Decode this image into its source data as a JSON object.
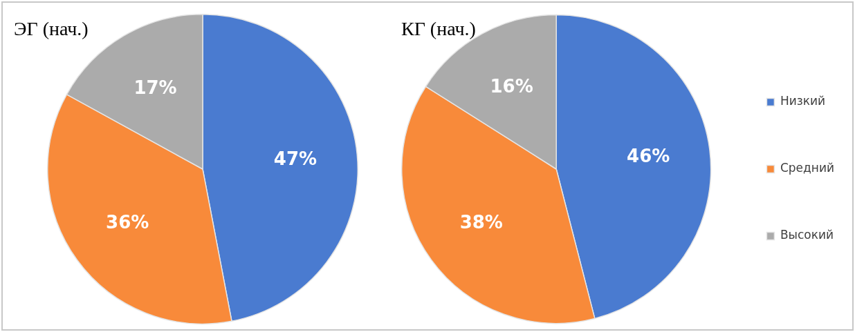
{
  "chart_data": [
    {
      "type": "pie",
      "title": "ЭГ (нач.)",
      "categories": [
        null,
        null,
        null
      ],
      "values": [
        47,
        36,
        17
      ],
      "value_labels": [
        "47%",
        "36%",
        "17%"
      ],
      "colors": [
        "#4a7bd0",
        "#f88a3a",
        "#ababab"
      ],
      "legend": false
    },
    {
      "type": "pie",
      "title": "КГ (нач.)",
      "categories": [
        "Низкий",
        "Средний",
        "Высокий"
      ],
      "values": [
        46,
        38,
        16
      ],
      "value_labels": [
        "46%",
        "38%",
        "16%"
      ],
      "colors": [
        "#4a7bd0",
        "#f88a3a",
        "#ababab"
      ],
      "legend": "right"
    }
  ]
}
